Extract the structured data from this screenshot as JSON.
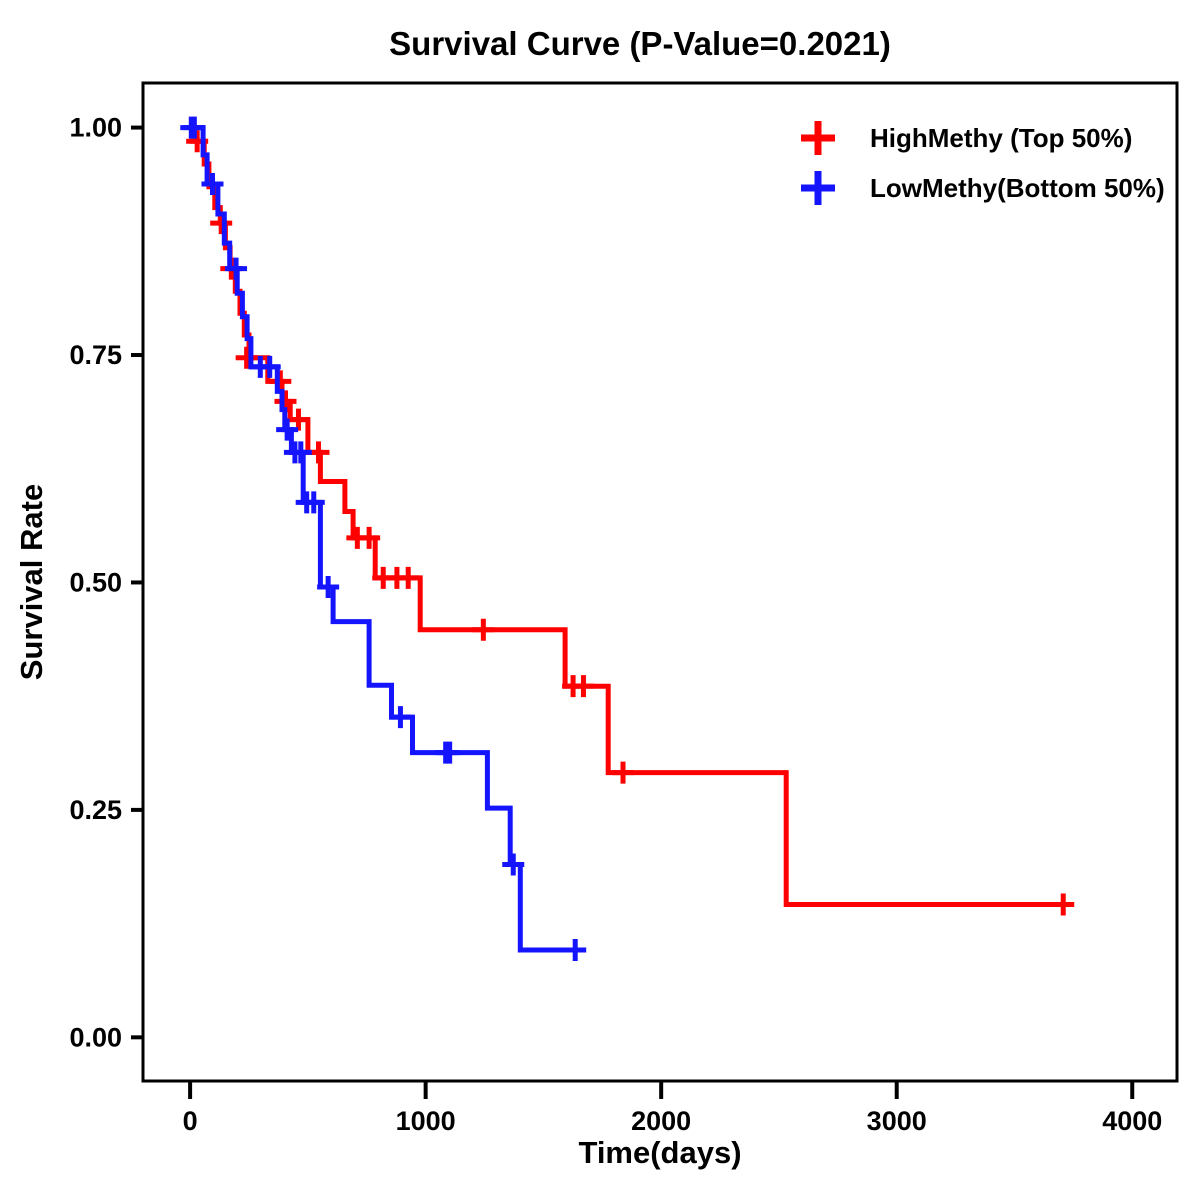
{
  "chart_data": {
    "type": "line",
    "subtype": "kaplan-meier-step-curve",
    "title": "Survival Curve (P-Value=0.2021)",
    "p_value": "0.2021",
    "xlabel": "Time(days)",
    "ylabel": "Survival Rate",
    "xlim": [
      -200,
      4190
    ],
    "ylim": [
      -0.048,
      1.049
    ],
    "xtick_values": [
      0,
      1000,
      2000,
      3000,
      4000
    ],
    "xtick_labels": [
      "0",
      "1000",
      "2000",
      "3000",
      "4000"
    ],
    "ytick_values": [
      0.0,
      0.25,
      0.5,
      0.75,
      1.0
    ],
    "ytick_labels": [
      "0.00",
      "0.25",
      "0.50",
      "0.75",
      "1.00"
    ],
    "grid": false,
    "legend_position": "top-right-inside",
    "censor_marker": "plus-cross",
    "series": [
      {
        "name": "HighMethy (Top 50%)",
        "color": "#FF0000",
        "steps": [
          [
            0,
            0.985
          ],
          [
            60,
            0.96
          ],
          [
            80,
            0.935
          ],
          [
            105,
            0.912
          ],
          [
            128,
            0.895
          ],
          [
            150,
            0.868
          ],
          [
            170,
            0.845
          ],
          [
            192,
            0.82
          ],
          [
            212,
            0.796
          ],
          [
            230,
            0.772
          ],
          [
            250,
            0.747
          ],
          [
            330,
            0.721
          ],
          [
            390,
            0.699
          ],
          [
            425,
            0.679
          ],
          [
            500,
            0.643
          ],
          [
            553,
            0.611
          ],
          [
            657,
            0.578
          ],
          [
            692,
            0.549
          ],
          [
            786,
            0.505
          ],
          [
            977,
            0.448
          ],
          [
            1592,
            0.386
          ],
          [
            1775,
            0.291
          ],
          [
            2531,
            0.146
          ]
        ],
        "end_time": 3730,
        "censors": [
          [
            30,
            0.985
          ],
          [
            132,
            0.895
          ],
          [
            175,
            0.845
          ],
          [
            240,
            0.747
          ],
          [
            383,
            0.721
          ],
          [
            405,
            0.699
          ],
          [
            460,
            0.679
          ],
          [
            545,
            0.643
          ],
          [
            710,
            0.549
          ],
          [
            760,
            0.549
          ],
          [
            820,
            0.505
          ],
          [
            878,
            0.505
          ],
          [
            926,
            0.505
          ],
          [
            1245,
            0.448
          ],
          [
            1626,
            0.386
          ],
          [
            1670,
            0.386
          ],
          [
            1838,
            0.291
          ],
          [
            3707,
            0.146
          ]
        ]
      },
      {
        "name": "LowMethy(Bottom 50%)",
        "color": "#1414FF",
        "steps": [
          [
            0,
            1.0
          ],
          [
            55,
            0.97
          ],
          [
            72,
            0.938
          ],
          [
            118,
            0.905
          ],
          [
            145,
            0.873
          ],
          [
            168,
            0.845
          ],
          [
            200,
            0.818
          ],
          [
            222,
            0.792
          ],
          [
            242,
            0.768
          ],
          [
            258,
            0.737
          ],
          [
            370,
            0.71
          ],
          [
            390,
            0.69
          ],
          [
            402,
            0.668
          ],
          [
            430,
            0.643
          ],
          [
            480,
            0.588
          ],
          [
            553,
            0.495
          ],
          [
            607,
            0.457
          ],
          [
            760,
            0.387
          ],
          [
            855,
            0.352
          ],
          [
            944,
            0.313
          ],
          [
            1262,
            0.252
          ],
          [
            1359,
            0.19
          ],
          [
            1402,
            0.096
          ]
        ],
        "end_time": 1655,
        "censors": [
          [
            5,
            1.0
          ],
          [
            18,
            1.0
          ],
          [
            95,
            0.938
          ],
          [
            195,
            0.845
          ],
          [
            298,
            0.737
          ],
          [
            338,
            0.737
          ],
          [
            412,
            0.668
          ],
          [
            445,
            0.643
          ],
          [
            470,
            0.643
          ],
          [
            495,
            0.588
          ],
          [
            525,
            0.588
          ],
          [
            586,
            0.495
          ],
          [
            893,
            0.352
          ],
          [
            1085,
            0.313
          ],
          [
            1102,
            0.313
          ],
          [
            1372,
            0.19
          ],
          [
            1635,
            0.096
          ]
        ]
      }
    ]
  }
}
